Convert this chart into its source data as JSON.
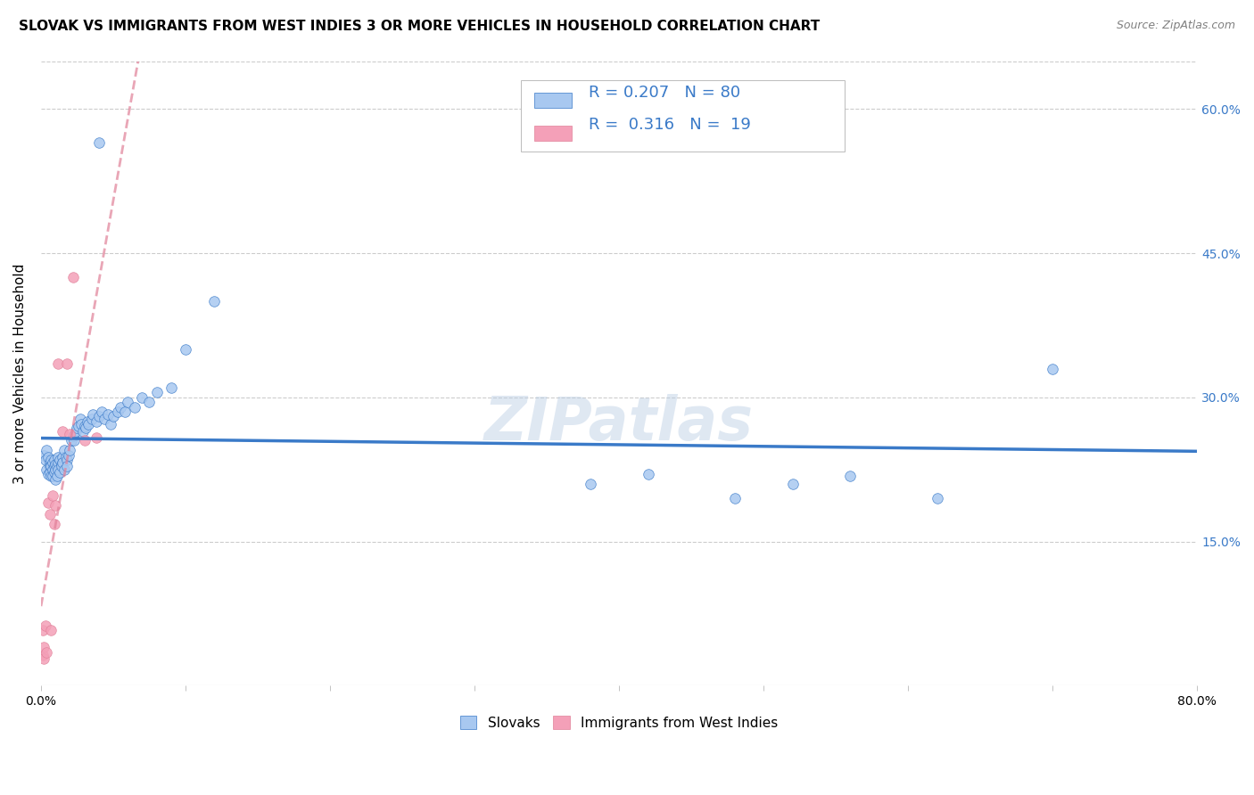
{
  "title": "SLOVAK VS IMMIGRANTS FROM WEST INDIES 3 OR MORE VEHICLES IN HOUSEHOLD CORRELATION CHART",
  "source": "Source: ZipAtlas.com",
  "ylabel": "3 or more Vehicles in Household",
  "x_min": 0.0,
  "x_max": 0.8,
  "y_min": 0.0,
  "y_max": 0.65,
  "x_tick_positions": [
    0.0,
    0.8
  ],
  "x_tick_labels": [
    "0.0%",
    "80.0%"
  ],
  "x_minor_ticks": [
    0.1,
    0.2,
    0.3,
    0.4,
    0.5,
    0.6,
    0.7
  ],
  "y_ticks": [
    0.15,
    0.3,
    0.45,
    0.6
  ],
  "y_tick_labels_right": [
    "15.0%",
    "30.0%",
    "45.0%",
    "60.0%"
  ],
  "watermark": "ZIPatlas",
  "legend_slovak_label": "Slovaks",
  "legend_wi_label": "Immigrants from West Indies",
  "slovak_R": "0.207",
  "slovak_N": "80",
  "wi_R": "0.316",
  "wi_N": "19",
  "slovak_color": "#a8c8f0",
  "wi_color": "#f4a0b8",
  "slovak_line_color": "#3a7ac8",
  "wi_line_color": "#e08098",
  "background_color": "#ffffff",
  "grid_color": "#cccccc",
  "slovak_x": [
    0.002,
    0.003,
    0.004,
    0.004,
    0.005,
    0.005,
    0.006,
    0.006,
    0.006,
    0.007,
    0.007,
    0.007,
    0.008,
    0.008,
    0.008,
    0.009,
    0.009,
    0.009,
    0.01,
    0.01,
    0.01,
    0.011,
    0.011,
    0.012,
    0.012,
    0.012,
    0.013,
    0.013,
    0.014,
    0.014,
    0.015,
    0.015,
    0.016,
    0.016,
    0.017,
    0.018,
    0.018,
    0.019,
    0.02,
    0.021,
    0.022,
    0.023,
    0.024,
    0.025,
    0.026,
    0.027,
    0.028,
    0.029,
    0.03,
    0.031,
    0.032,
    0.033,
    0.035,
    0.036,
    0.038,
    0.04,
    0.042,
    0.044,
    0.046,
    0.048,
    0.05,
    0.053,
    0.055,
    0.058,
    0.06,
    0.065,
    0.07,
    0.075,
    0.08,
    0.09,
    0.1,
    0.12,
    0.04,
    0.38,
    0.42,
    0.48,
    0.52,
    0.56,
    0.62,
    0.7
  ],
  "slovak_y": [
    0.24,
    0.235,
    0.245,
    0.225,
    0.238,
    0.22,
    0.232,
    0.228,
    0.222,
    0.235,
    0.228,
    0.218,
    0.232,
    0.225,
    0.218,
    0.228,
    0.235,
    0.222,
    0.23,
    0.225,
    0.215,
    0.228,
    0.218,
    0.232,
    0.238,
    0.225,
    0.235,
    0.222,
    0.23,
    0.228,
    0.238,
    0.232,
    0.245,
    0.225,
    0.238,
    0.235,
    0.228,
    0.24,
    0.245,
    0.255,
    0.26,
    0.255,
    0.265,
    0.268,
    0.27,
    0.278,
    0.272,
    0.265,
    0.27,
    0.268,
    0.275,
    0.272,
    0.278,
    0.282,
    0.275,
    0.28,
    0.285,
    0.278,
    0.282,
    0.272,
    0.28,
    0.285,
    0.29,
    0.285,
    0.295,
    0.29,
    0.3,
    0.295,
    0.305,
    0.31,
    0.35,
    0.4,
    0.565,
    0.21,
    0.22,
    0.195,
    0.21,
    0.218,
    0.195,
    0.33
  ],
  "wi_x": [
    0.001,
    0.001,
    0.002,
    0.002,
    0.003,
    0.004,
    0.005,
    0.006,
    0.007,
    0.008,
    0.009,
    0.01,
    0.012,
    0.015,
    0.018,
    0.02,
    0.022,
    0.03,
    0.038
  ],
  "wi_y": [
    0.032,
    0.058,
    0.04,
    0.028,
    0.062,
    0.035,
    0.19,
    0.178,
    0.058,
    0.198,
    0.168,
    0.188,
    0.335,
    0.265,
    0.335,
    0.262,
    0.425,
    0.255,
    0.258
  ]
}
